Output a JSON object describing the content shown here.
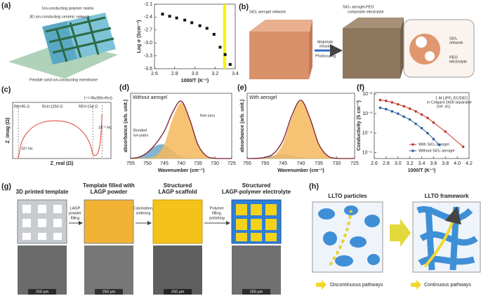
{
  "panel_labels": [
    "(a)",
    "(b)",
    "(c)",
    "(d)",
    "(e)",
    "(f)",
    "(g)",
    "(h)"
  ],
  "figure_a": {
    "labels": [
      "Ion-conducting polymer matrix",
      "3D ion-conducting ceramic network",
      "Flexible solid ion-conducting membrane"
    ]
  },
  "figure_b": {
    "labels": [
      "SiO₂ aerogel network",
      "SiO₂ aerogel-PEO",
      "composite electrolyte",
      "Materials",
      "infusion",
      "Photocuring",
      "SiO₂",
      "network",
      "PEO",
      "electrolyte"
    ]
  },
  "figure_g": {
    "steps": [
      [
        "3D printed template"
      ],
      [
        "Template filled with",
        "LAGP powder"
      ],
      [
        "Structured",
        "LAGP scaffold"
      ],
      [
        "Structured",
        "LAGP-polymer electrolyte"
      ]
    ],
    "arrows": [
      [
        "LAGP",
        "powder",
        "filling"
      ],
      [
        "Calcination,",
        "sintering"
      ],
      [
        "Polymer",
        "filling,",
        "polishing"
      ]
    ],
    "scale_bars": [
      "250 µm",
      "250 µm",
      "250 µm",
      "250 µm"
    ]
  },
  "figure_h": {
    "titles": [
      "LLTO particles",
      "LLTO framework"
    ],
    "captions": [
      "Discontinuous pathways",
      "Continuous pathways"
    ]
  },
  "chart_data": [
    {
      "type": "scatter",
      "xlabel": "1000/T (K⁻¹)",
      "ylabel": "Log σ (Scm⁻¹)",
      "x": [
        2.68,
        2.75,
        2.82,
        2.9,
        2.97,
        3.05,
        3.12,
        3.19,
        3.25,
        3.3,
        3.35
      ],
      "values": [
        -2.33,
        -2.38,
        -2.42,
        -2.47,
        -2.53,
        -2.6,
        -2.66,
        -2.8,
        -3.1,
        -3.27,
        -3.5
      ],
      "color": "#111111",
      "highlight_x": [
        3.28,
        3.31
      ],
      "highlight_color": "#f5f500",
      "xlim": [
        2.6,
        3.4
      ],
      "xticks": [
        2.6,
        2.8,
        {
          "value": 3,
          "label": "3.0"
        },
        3.2,
        3.4
      ],
      "ylim": [
        -3.6,
        -2.1
      ],
      "yticks": [
        -2.1,
        -2.4,
        -2.7,
        {
          "value": -3,
          "label": "-3.0"
        },
        -3.3,
        -3.6
      ]
    },
    {
      "type": "line",
      "xlabel": "Z_real (Ω)",
      "ylabel": "Z_imag (Ω)",
      "series": [
        {
          "color": "#e03a2f",
          "x": [
            95,
            150,
            250,
            400,
            550,
            720,
            900,
            1050,
            1200,
            1300,
            1345,
            1400,
            1440,
            1470,
            1490,
            1500
          ],
          "values": [
            0,
            200,
            330,
            420,
            460,
            470,
            455,
            410,
            310,
            180,
            60,
            40,
            90,
            200,
            380,
            550
          ]
        }
      ],
      "reference_lines_x": [
        95,
        1345,
        1499
      ],
      "annotations": [
        "Rb=95 Ω",
        "Rct=1250 Ω",
        "REt=154 Ω",
        "10⁴ Hz",
        "10⁻² Hz",
        "t⁺= Rb/(Rb+Rct)"
      ],
      "xlim": [
        0,
        1650
      ],
      "ylim": [
        0,
        700
      ]
    },
    {
      "type": "area",
      "title": "Without aerogel",
      "xlabel": "Wavenumber (cm⁻¹)",
      "ylabel": "absorbance (arb. unit.)",
      "annotations": [
        "Bonded",
        "ion-pairs",
        "free ions"
      ],
      "x": [
        755,
        752.5,
        750,
        747.5,
        745,
        742.5,
        740,
        737.5,
        735,
        732.5,
        730,
        727.5,
        725
      ],
      "series": [
        {
          "color": "#6fa8c8",
          "fill": true,
          "values": [
            0.002,
            0.021,
            0.09,
            0.19,
            0.21,
            0.11,
            0.03,
            0.004,
            0,
            0,
            0,
            0,
            0
          ]
        },
        {
          "color": "#f5b85c",
          "fill": true,
          "values": [
            0,
            0,
            0.004,
            0.038,
            0.21,
            0.6,
            0.85,
            0.6,
            0.21,
            0.038,
            0.004,
            0,
            0
          ]
        },
        {
          "color": "#7a1a2c",
          "fill": false,
          "values": [
            0.002,
            0.021,
            0.094,
            0.228,
            0.42,
            0.71,
            0.88,
            0.604,
            0.21,
            0.038,
            0.004,
            0,
            0
          ]
        }
      ],
      "xlim": [
        755,
        725
      ],
      "xticks": [
        755,
        750,
        745,
        740,
        735,
        730,
        725
      ],
      "ylim": [
        0,
        1
      ]
    },
    {
      "type": "area",
      "title": "With aerogel",
      "xlabel": "Wavenumber (cm⁻¹)",
      "ylabel": "absorbance (arb. unit.)",
      "x": [
        755,
        752.5,
        750,
        747.5,
        745,
        742.5,
        740,
        737.5,
        735,
        732.5,
        730,
        727.5,
        725
      ],
      "series": [
        {
          "color": "#6fa8c8",
          "fill": true,
          "values": [
            0,
            0.002,
            0.015,
            0.042,
            0.06,
            0.042,
            0.015,
            0.002,
            0,
            0,
            0,
            0,
            0
          ]
        },
        {
          "color": "#f5b85c",
          "fill": true,
          "values": [
            0,
            0,
            0.004,
            0.039,
            0.219,
            0.622,
            0.88,
            0.622,
            0.219,
            0.039,
            0.004,
            0,
            0
          ]
        },
        {
          "color": "#7a1a2c",
          "fill": false,
          "values": [
            0,
            0.002,
            0.019,
            0.081,
            0.279,
            0.664,
            0.895,
            0.624,
            0.219,
            0.039,
            0.004,
            0,
            0
          ]
        }
      ],
      "xlim": [
        755,
        725
      ],
      "xticks": [
        755,
        750,
        745,
        740,
        735,
        730,
        725
      ],
      "ylim": [
        0,
        1
      ]
    },
    {
      "type": "line",
      "xlabel": "1000/T (K⁻¹)",
      "ylabel": "Conductivity (S cm⁻¹)",
      "ylog": true,
      "markers": true,
      "legend": "lower right",
      "annotations": [
        "1 M LiPF₆ EC/DEC",
        "in Celgard 2400 separator",
        "(ref. 41)"
      ],
      "series": [
        {
          "name": "With SiO₂ aerogel",
          "color": "#c0392b",
          "x": [
            2.7,
            2.8,
            2.9,
            3.0,
            3.1,
            3.2,
            3.3,
            3.4,
            3.5,
            3.6,
            3.8,
            4.1
          ],
          "values": [
            0.005,
            0.0045,
            0.0038,
            0.003,
            0.0024,
            0.0018,
            0.0013,
            0.0009,
            0.0006,
            0.00035,
            0.00012,
            2e-05
          ]
        },
        {
          "name": "Without SiO₂ aerogel",
          "color": "#2f5f9e",
          "x": [
            2.7,
            2.8,
            2.9,
            3.0,
            3.1,
            3.2,
            3.3,
            3.4,
            3.5,
            3.6,
            3.7
          ],
          "values": [
            0.002,
            0.0017,
            0.0013,
            0.001,
            0.0007,
            0.0005,
            0.0003,
            0.00018,
            0.0001,
            5e-05,
            2.5e-05
          ]
        }
      ],
      "xlim": [
        2.6,
        4.2
      ],
      "xticks": [
        2.6,
        2.8,
        {
          "value": 3,
          "label": "3.0"
        },
        3.2,
        3.4,
        3.6,
        3.8,
        {
          "value": 4,
          "label": "4.0"
        },
        4.2
      ],
      "ylim": [
        5e-06,
        0.012
      ],
      "yticks": [
        {
          "value": 0.01,
          "label": "10⁻²"
        },
        {
          "value": 0.001,
          "label": "10⁻³"
        },
        {
          "value": 0.0001,
          "label": "10⁻⁴"
        },
        {
          "value": 1e-05,
          "label": "10⁻⁵"
        }
      ]
    }
  ]
}
